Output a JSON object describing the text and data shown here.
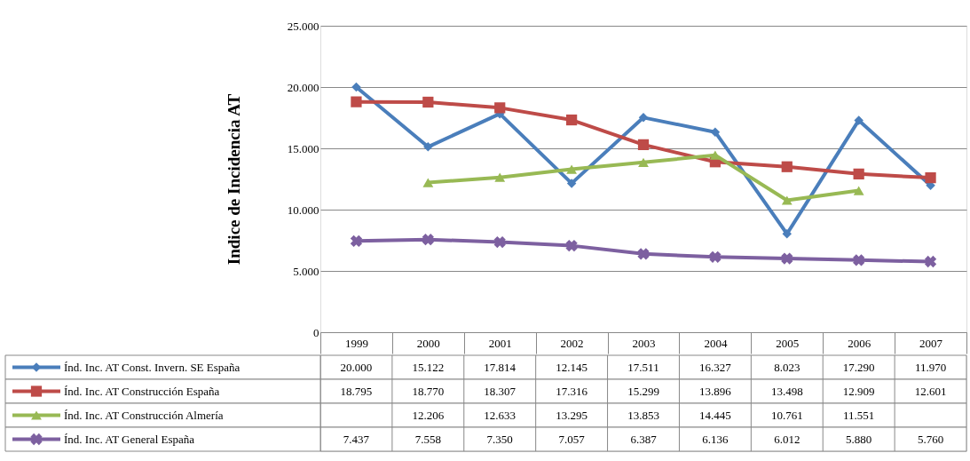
{
  "chart_data": {
    "type": "line",
    "ylabel": "Indice de Incidencia AT",
    "categories": [
      "1999",
      "2000",
      "2001",
      "2002",
      "2003",
      "2004",
      "2005",
      "2006",
      "2007"
    ],
    "ylim": [
      0,
      25000
    ],
    "yticks": [
      {
        "value": 0,
        "label": "0"
      },
      {
        "value": 5000,
        "label": "5.000"
      },
      {
        "value": 10000,
        "label": "10.000"
      },
      {
        "value": 15000,
        "label": "15.000"
      },
      {
        "value": 20000,
        "label": "20.000"
      },
      {
        "value": 25000,
        "label": "25.000"
      }
    ],
    "grid": "y",
    "legend": "bottom",
    "series": [
      {
        "name": "Índ. Inc. AT Const. Invern. SE España",
        "color": "#4a7ebb",
        "marker": "diamond",
        "values": [
          20000,
          15122,
          17814,
          12145,
          17511,
          16327,
          8023,
          17290,
          11970
        ],
        "value_labels": [
          "20.000",
          "15.122",
          "17.814",
          "12.145",
          "17.511",
          "16.327",
          "8.023",
          "17.290",
          "11.970"
        ]
      },
      {
        "name": "Índ. Inc. AT Construcción España",
        "color": "#be4b48",
        "marker": "square",
        "values": [
          18795,
          18770,
          18307,
          17316,
          15299,
          13896,
          13498,
          12909,
          12601
        ],
        "value_labels": [
          "18.795",
          "18.770",
          "18.307",
          "17.316",
          "15.299",
          "13.896",
          "13.498",
          "12.909",
          "12.601"
        ]
      },
      {
        "name": "Índ. Inc. AT Construcción Almería",
        "color": "#98b954",
        "marker": "triangle",
        "values": [
          null,
          12206,
          12633,
          13295,
          13853,
          14445,
          10761,
          11551,
          null
        ],
        "value_labels": [
          null,
          "12.206",
          "12.633",
          "13.295",
          "13.853",
          "14.445",
          "10.761",
          "11.551",
          null
        ]
      },
      {
        "name": "Índ. Inc. AT General España",
        "color": "#7d60a0",
        "marker": "cross",
        "values": [
          7437,
          7558,
          7350,
          7057,
          6387,
          6136,
          6012,
          5880,
          5760
        ],
        "value_labels": [
          "7.437",
          "7.558",
          "7.350",
          "7.057",
          "6.387",
          "6.136",
          "6.012",
          "5.880",
          "5.760"
        ]
      }
    ]
  }
}
